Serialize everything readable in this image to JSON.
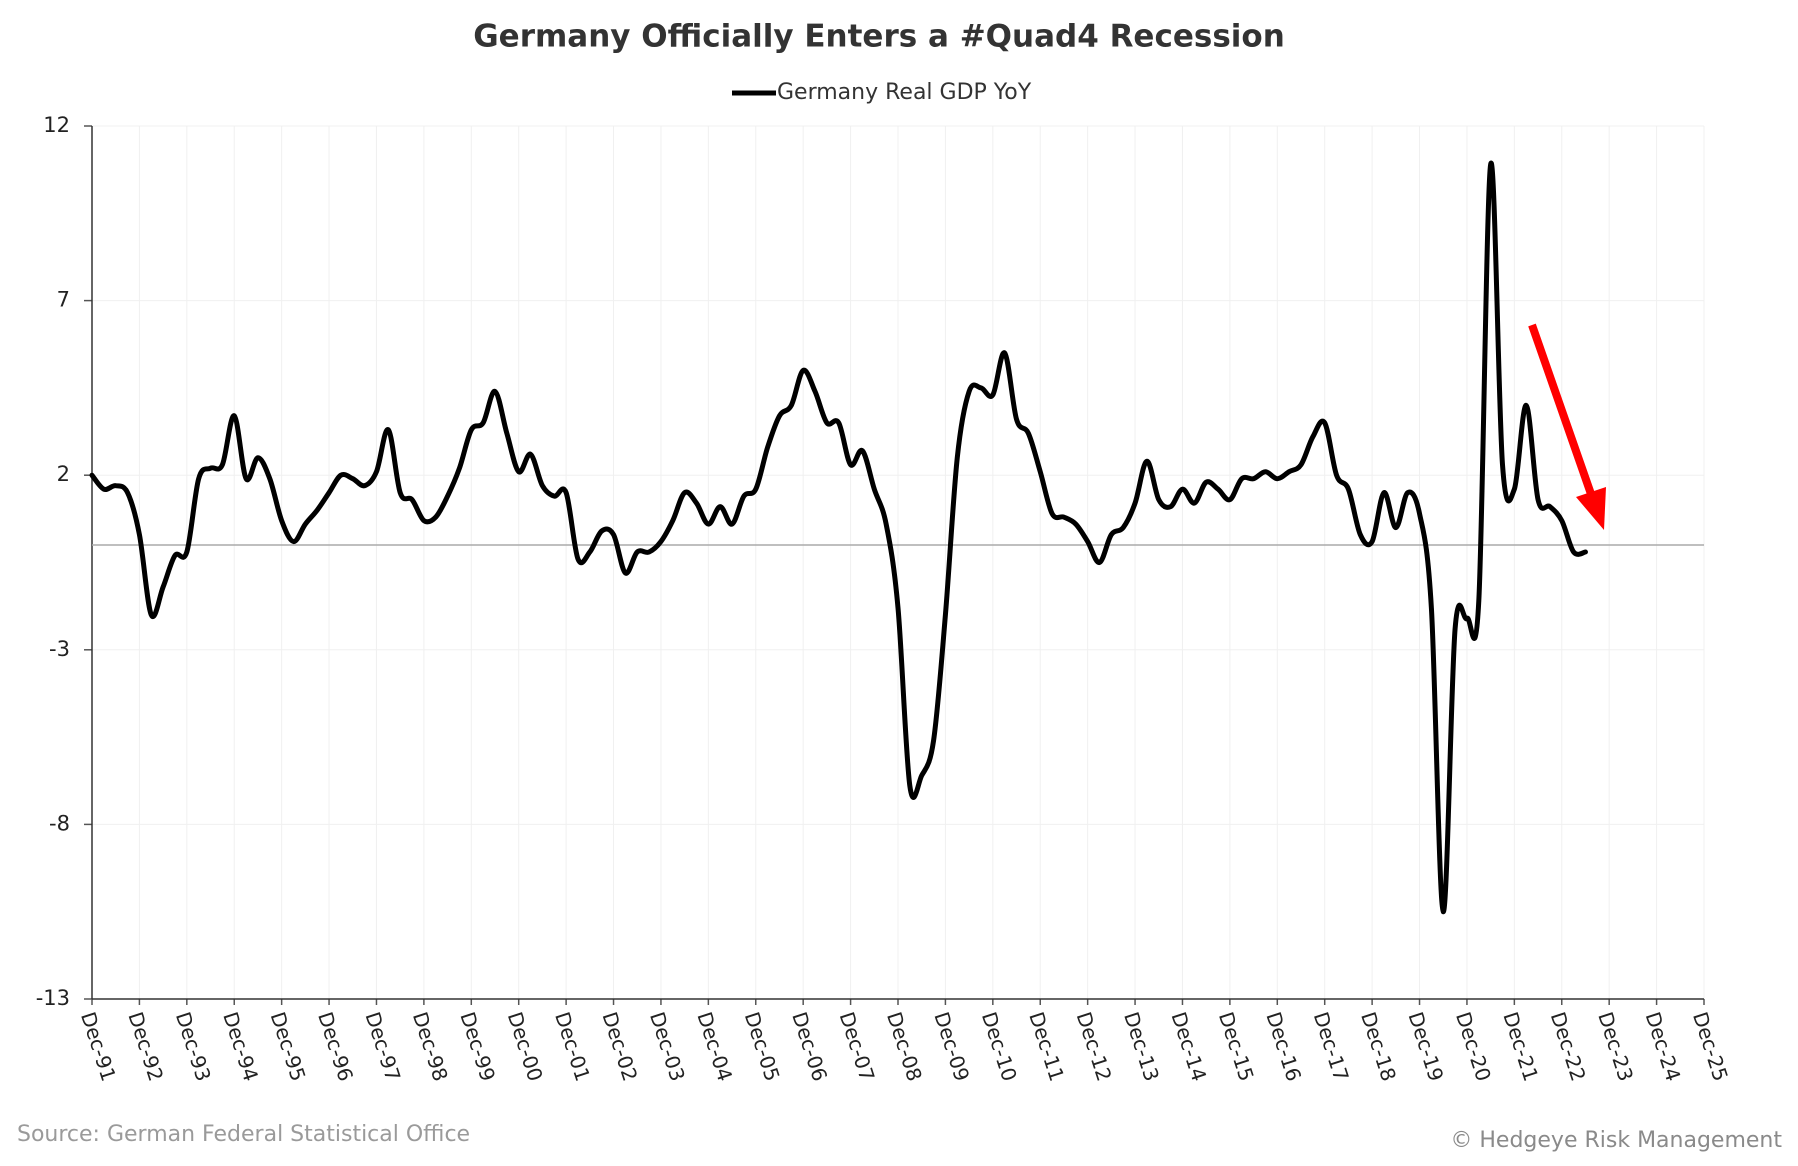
{
  "chart_data": {
    "type": "line",
    "title": "Germany Officially Enters a #Quad4 Recession",
    "source": "Source: German Federal Statistical Office",
    "credit": "© Hedgeye Risk Management",
    "categories": [
      "Dec-91",
      null,
      null,
      null,
      "Dec-92",
      null,
      null,
      null,
      "Dec-93",
      null,
      null,
      null,
      "Dec-94",
      null,
      null,
      null,
      "Dec-95",
      null,
      null,
      null,
      "Dec-96",
      null,
      null,
      null,
      "Dec-97",
      null,
      null,
      null,
      "Dec-98",
      null,
      null,
      null,
      "Dec-99",
      null,
      null,
      null,
      "Dec-00",
      null,
      null,
      null,
      "Dec-01",
      null,
      null,
      null,
      "Dec-02",
      null,
      null,
      null,
      "Dec-03",
      null,
      null,
      null,
      "Dec-04",
      null,
      null,
      null,
      "Dec-05",
      null,
      null,
      null,
      "Dec-06",
      null,
      null,
      null,
      "Dec-07",
      null,
      null,
      null,
      "Dec-08",
      null,
      null,
      null,
      "Dec-09",
      null,
      null,
      null,
      "Dec-10",
      null,
      null,
      null,
      "Dec-11",
      null,
      null,
      null,
      "Dec-12",
      null,
      null,
      null,
      "Dec-13",
      null,
      null,
      null,
      "Dec-14",
      null,
      null,
      null,
      "Dec-15",
      null,
      null,
      null,
      "Dec-16",
      null,
      null,
      null,
      "Dec-17",
      null,
      null,
      null,
      "Dec-18",
      null,
      null,
      null,
      "Dec-19",
      null,
      null,
      null,
      "Dec-20",
      null,
      null,
      null,
      "Dec-21",
      null,
      null,
      null,
      "Dec-22",
      null,
      null,
      null,
      "Dec-23",
      null,
      null,
      null,
      "Dec-24",
      null,
      null,
      null,
      "Dec-25"
    ],
    "series": [
      {
        "name": "Germany Real GDP YoY",
        "color": "#000000",
        "values": [
          2.0,
          1.6,
          1.7,
          1.5,
          0.3,
          -2.0,
          -1.2,
          -0.3,
          -0.2,
          1.9,
          2.2,
          2.3,
          3.7,
          1.9,
          2.5,
          1.9,
          0.7,
          0.1,
          0.6,
          1.0,
          1.5,
          2.0,
          1.9,
          1.7,
          2.1,
          3.3,
          1.5,
          1.3,
          0.7,
          0.8,
          1.4,
          2.2,
          3.3,
          3.5,
          4.4,
          3.2,
          2.1,
          2.6,
          1.7,
          1.4,
          1.5,
          -0.4,
          -0.2,
          0.4,
          0.3,
          -0.8,
          -0.2,
          -0.2,
          0.1,
          0.7,
          1.5,
          1.2,
          0.6,
          1.1,
          0.6,
          1.4,
          1.6,
          2.8,
          3.7,
          4.0,
          5.0,
          4.4,
          3.5,
          3.5,
          2.3,
          2.7,
          1.6,
          0.6,
          -1.8,
          -6.9,
          -6.6,
          -5.6,
          -2.0,
          2.5,
          4.4,
          4.5,
          4.3,
          5.5,
          3.6,
          3.2,
          2.1,
          0.9,
          0.8,
          0.6,
          0.1,
          -0.5,
          0.3,
          0.5,
          1.2,
          2.4,
          1.3,
          1.1,
          1.6,
          1.2,
          1.8,
          1.6,
          1.3,
          1.9,
          1.9,
          2.1,
          1.9,
          2.1,
          2.3,
          3.1,
          3.5,
          2.0,
          1.6,
          0.3,
          0.1,
          1.5,
          0.5,
          1.5,
          0.9,
          -1.8,
          -10.5,
          -2.4,
          -2.1,
          -1.6,
          10.9,
          2.3,
          1.6,
          4.0,
          1.3,
          1.1,
          0.7,
          -0.2,
          -0.2,
          null,
          null,
          null,
          null,
          null,
          null,
          null,
          null,
          null,
          null
        ]
      }
    ],
    "ylim": [
      -13,
      12
    ],
    "yticks": [
      12,
      7,
      2,
      -3,
      -8,
      -13
    ],
    "grid": true,
    "legend": "top"
  }
}
